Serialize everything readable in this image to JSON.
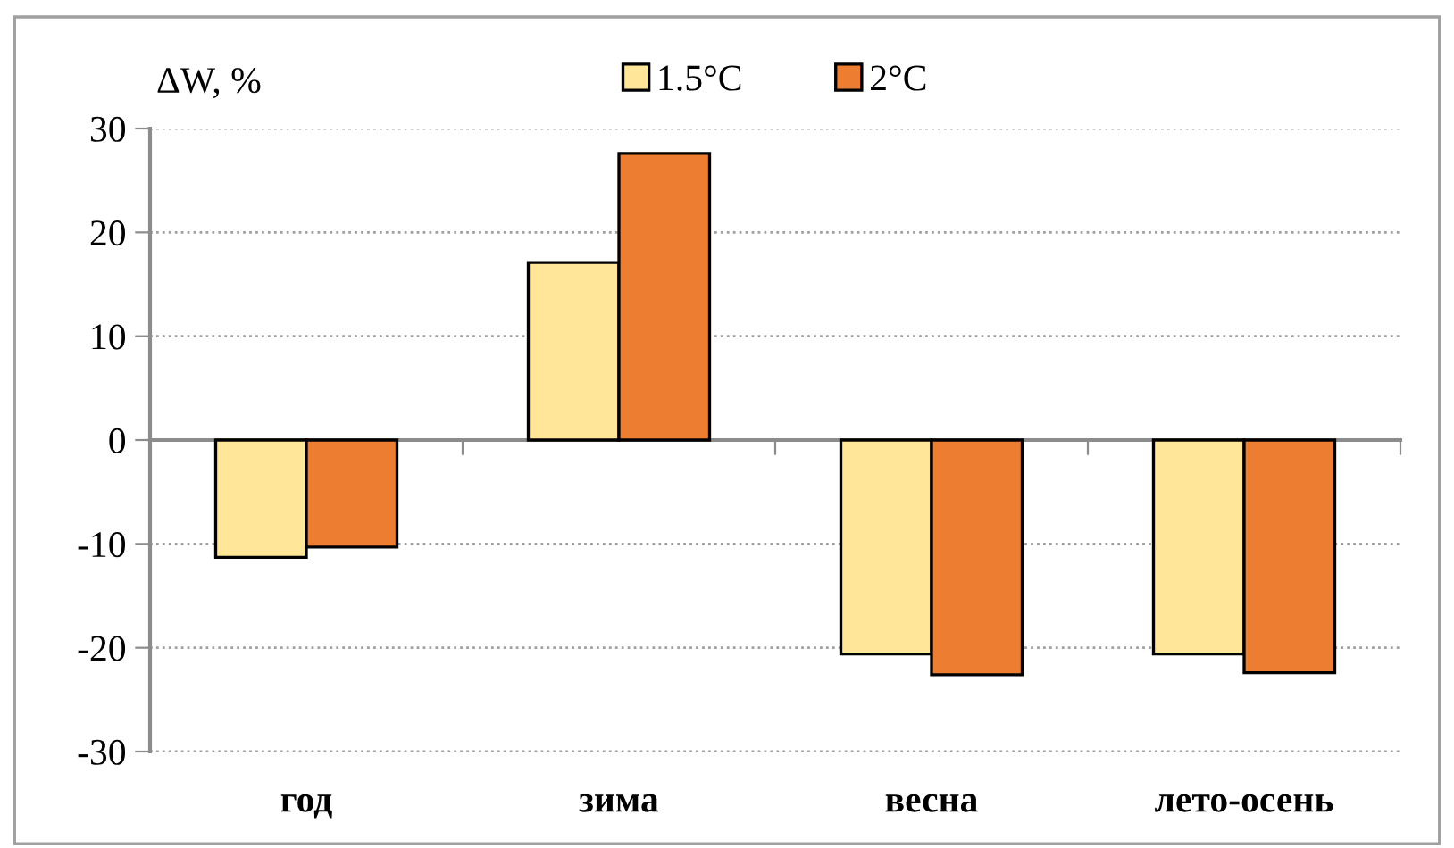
{
  "chart_data": {
    "type": "bar",
    "ylabel": "ΔW, %",
    "categories": [
      "год",
      "зима",
      "весна",
      "лето-осень"
    ],
    "series": [
      {
        "name": "1.5°C",
        "color": "#ffe699",
        "values": [
          -11.3,
          17.1,
          -20.6,
          -20.6
        ]
      },
      {
        "name": "2°C",
        "color": "#ed7d31",
        "values": [
          -10.3,
          27.6,
          -22.6,
          -22.4
        ]
      }
    ],
    "ylim": [
      -30,
      30
    ],
    "yticks": [
      -30,
      -20,
      -10,
      0,
      10,
      20,
      30
    ],
    "grid": "y",
    "legend": "top"
  }
}
